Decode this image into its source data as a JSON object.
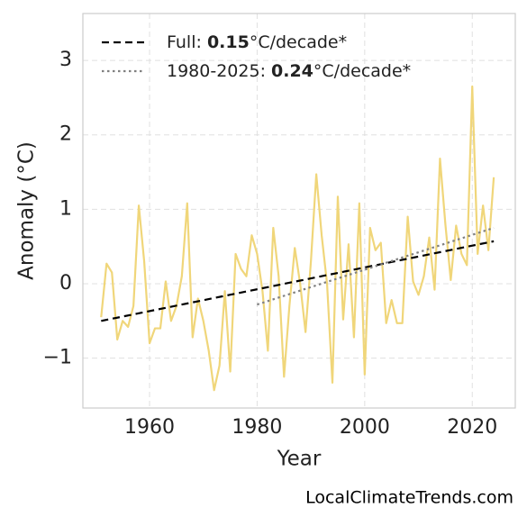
{
  "chart_data": {
    "type": "line",
    "xlabel": "Year",
    "ylabel": "Anomaly (°C)",
    "source": "LocalClimateTrends.com",
    "xlim": [
      1947.6,
      2028.0
    ],
    "ylim": [
      -1.67,
      3.63
    ],
    "xticks": [
      1960,
      1980,
      2000,
      2020
    ],
    "yticks": [
      {
        "value": -1,
        "label": "−1"
      },
      0,
      1,
      2,
      3
    ],
    "grid": true,
    "legend_position": "upper left",
    "series": [
      {
        "color": "#f0d67a",
        "style": "solid",
        "x": [
          1951,
          1952,
          1953,
          1954,
          1955,
          1956,
          1957,
          1958,
          1959,
          1960,
          1961,
          1962,
          1963,
          1964,
          1965,
          1966,
          1967,
          1968,
          1969,
          1970,
          1971,
          1972,
          1973,
          1974,
          1975,
          1976,
          1977,
          1978,
          1979,
          1980,
          1981,
          1982,
          1983,
          1984,
          1985,
          1986,
          1987,
          1988,
          1989,
          1990,
          1991,
          1992,
          1993,
          1994,
          1995,
          1996,
          1997,
          1998,
          1999,
          2000,
          2001,
          2002,
          2003,
          2004,
          2005,
          2006,
          2007,
          2008,
          2009,
          2010,
          2011,
          2012,
          2013,
          2014,
          2015,
          2016,
          2017,
          2018,
          2019,
          2020,
          2021,
          2022,
          2023,
          2024
        ],
        "values": [
          -0.45,
          0.27,
          0.15,
          -0.75,
          -0.5,
          -0.58,
          -0.3,
          1.05,
          0.3,
          -0.8,
          -0.6,
          -0.6,
          0.03,
          -0.5,
          -0.3,
          0.1,
          1.08,
          -0.72,
          -0.2,
          -0.5,
          -0.9,
          -1.43,
          -1.1,
          -0.1,
          -1.18,
          0.4,
          0.2,
          0.1,
          0.65,
          0.4,
          -0.1,
          -0.9,
          0.75,
          0.1,
          -1.25,
          -0.3,
          0.48,
          0.0,
          -0.65,
          0.3,
          1.47,
          0.65,
          0.0,
          -1.33,
          1.17,
          -0.48,
          0.53,
          -0.72,
          1.08,
          -1.22,
          0.75,
          0.45,
          0.55,
          -0.53,
          -0.22,
          -0.53,
          -0.53,
          0.9,
          0.03,
          -0.15,
          0.1,
          0.62,
          -0.08,
          1.68,
          0.8,
          0.05,
          0.78,
          0.4,
          0.25,
          2.65,
          0.4,
          1.05,
          0.45,
          1.43
        ]
      },
      {
        "color": "#000000",
        "style": "dashed",
        "legend": [
          "Full: ",
          "0.15",
          "°C/decade*"
        ],
        "x": [
          1951,
          2024
        ],
        "values": [
          -0.5,
          0.57
        ]
      },
      {
        "color": "#808080",
        "style": "dotted",
        "legend": [
          "1980-2025: ",
          "0.24",
          "°C/decade*"
        ],
        "x": [
          1980,
          2024
        ],
        "values": [
          -0.28,
          0.75
        ]
      }
    ]
  }
}
